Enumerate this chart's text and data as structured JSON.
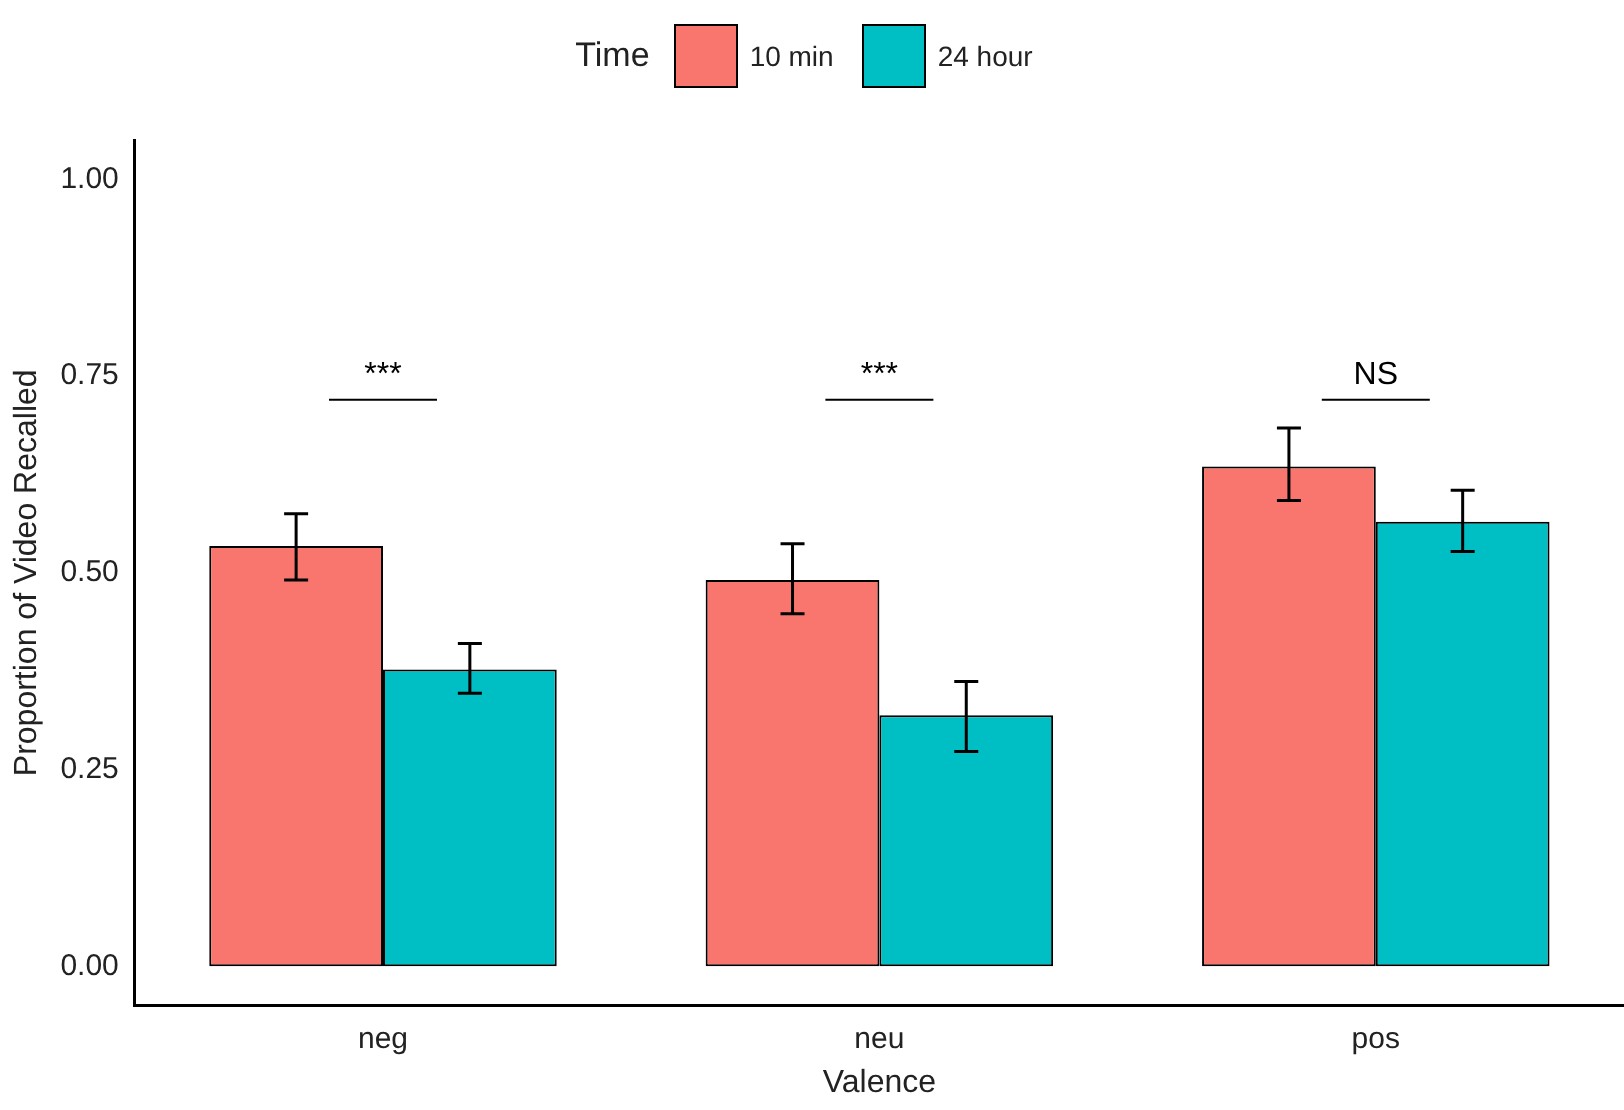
{
  "chart_data": {
    "type": "bar",
    "xlabel": "Valence",
    "ylabel": "Proportion of Video Recalled",
    "legend_title": "Time",
    "legend": "top",
    "categories": [
      "neg",
      "neu",
      "pos"
    ],
    "series": [
      {
        "name": "10 min",
        "color": "#f8766d",
        "values": [
          0.534,
          0.491,
          0.635
        ],
        "errors": [
          [
            0.491,
            0.575
          ],
          [
            0.448,
            0.537
          ],
          [
            0.592,
            0.684
          ]
        ]
      },
      {
        "name": "24 hour",
        "color": "#00bfc4",
        "values": [
          0.377,
          0.319,
          0.565
        ],
        "errors": [
          [
            0.347,
            0.41
          ],
          [
            0.273,
            0.362
          ],
          [
            0.527,
            0.605
          ]
        ]
      }
    ],
    "ylim": [
      -0.05,
      1.05
    ],
    "yticks": [
      {
        "value": 0,
        "label": "0.00"
      },
      {
        "value": 0.25,
        "label": "0.25"
      },
      {
        "value": 0.5,
        "label": "0.50"
      },
      {
        "value": 0.75,
        "label": "0.75"
      },
      {
        "value": 1,
        "label": "1.00"
      }
    ],
    "grid": false,
    "annotations": [
      "***",
      "***",
      "NS"
    ]
  }
}
